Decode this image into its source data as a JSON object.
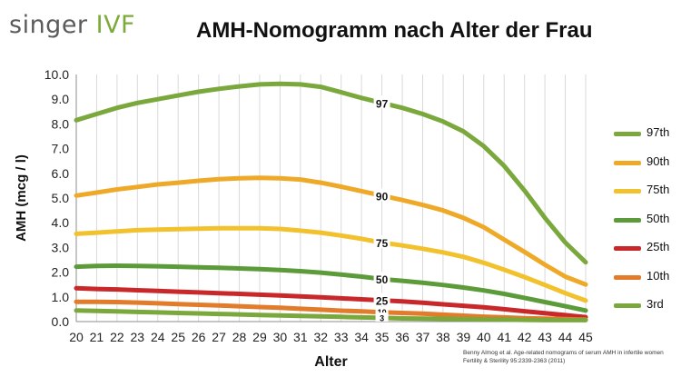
{
  "header": {
    "logo_part1": "singer",
    "logo_part2": "IVF",
    "title": "AMH-Nomogramm nach Alter der Frau"
  },
  "reference": {
    "line1": "Benny Almog et al. Age-related nomograms of serum AMH in infertile women",
    "line2": "Fertility & Sterility 95:2339-2363 (2011)"
  },
  "colors": {
    "green": "#7aa83c",
    "darkgreen": "#5c9b3a",
    "orange": "#efa928",
    "yellow": "#f2c12e",
    "red": "#c9282a",
    "darkorange": "#e27b2a",
    "logo_gray": "#5b5b5b",
    "logo_green": "#7cab3b"
  },
  "chart_data": {
    "type": "line",
    "xlabel": "Alter",
    "ylabel": "AMH (mcg / l)",
    "x": [
      20,
      21,
      22,
      23,
      24,
      25,
      26,
      27,
      28,
      29,
      30,
      31,
      32,
      33,
      34,
      35,
      36,
      37,
      38,
      39,
      40,
      41,
      42,
      43,
      44,
      45
    ],
    "ylim": [
      0,
      10
    ],
    "yticks": [
      "0.0",
      "1.0",
      "2.0",
      "3.0",
      "4.0",
      "5.0",
      "6.0",
      "7.0",
      "8.0",
      "9.0",
      "10.0"
    ],
    "xticks": [
      "20",
      "21",
      "22",
      "23",
      "24",
      "25",
      "26",
      "27",
      "28",
      "29",
      "30",
      "31",
      "32",
      "33",
      "34",
      "35",
      "36",
      "37",
      "38",
      "39",
      "40",
      "41",
      "42",
      "43",
      "44",
      "45"
    ],
    "grid": "vertical",
    "legend_position": "right",
    "series": [
      {
        "name": "97th",
        "label": "97",
        "color": "#7aa83c",
        "values": [
          8.15,
          8.4,
          8.65,
          8.85,
          9.0,
          9.15,
          9.3,
          9.42,
          9.52,
          9.6,
          9.62,
          9.6,
          9.5,
          9.28,
          9.05,
          8.85,
          8.65,
          8.4,
          8.1,
          7.7,
          7.1,
          6.3,
          5.3,
          4.2,
          3.2,
          2.4
        ]
      },
      {
        "name": "90th",
        "label": "90",
        "color": "#efa928",
        "values": [
          5.1,
          5.22,
          5.35,
          5.45,
          5.55,
          5.62,
          5.7,
          5.76,
          5.8,
          5.82,
          5.8,
          5.75,
          5.62,
          5.46,
          5.28,
          5.1,
          4.92,
          4.72,
          4.5,
          4.2,
          3.82,
          3.32,
          2.82,
          2.3,
          1.82,
          1.5
        ]
      },
      {
        "name": "75th",
        "label": "75",
        "color": "#f2c12e",
        "values": [
          3.55,
          3.6,
          3.65,
          3.7,
          3.72,
          3.74,
          3.76,
          3.78,
          3.78,
          3.78,
          3.75,
          3.68,
          3.6,
          3.48,
          3.35,
          3.2,
          3.08,
          2.95,
          2.8,
          2.62,
          2.38,
          2.1,
          1.8,
          1.48,
          1.15,
          0.85
        ]
      },
      {
        "name": "50th",
        "label": "50",
        "color": "#5c9b3a",
        "values": [
          2.22,
          2.25,
          2.26,
          2.25,
          2.24,
          2.22,
          2.2,
          2.18,
          2.15,
          2.12,
          2.09,
          2.04,
          1.98,
          1.9,
          1.82,
          1.72,
          1.65,
          1.57,
          1.48,
          1.38,
          1.26,
          1.12,
          0.96,
          0.79,
          0.62,
          0.45
        ]
      },
      {
        "name": "25th",
        "label": "25",
        "color": "#c9282a",
        "values": [
          1.35,
          1.32,
          1.3,
          1.27,
          1.24,
          1.21,
          1.18,
          1.15,
          1.12,
          1.09,
          1.06,
          1.02,
          0.98,
          0.94,
          0.9,
          0.86,
          0.82,
          0.76,
          0.7,
          0.64,
          0.58,
          0.5,
          0.42,
          0.34,
          0.26,
          0.18
        ]
      },
      {
        "name": "10th",
        "label": "10",
        "color": "#e27b2a",
        "values": [
          0.8,
          0.8,
          0.79,
          0.77,
          0.74,
          0.71,
          0.68,
          0.65,
          0.62,
          0.59,
          0.56,
          0.52,
          0.48,
          0.44,
          0.41,
          0.38,
          0.35,
          0.32,
          0.28,
          0.24,
          0.2,
          0.17,
          0.14,
          0.12,
          0.1,
          0.08
        ]
      },
      {
        "name": "3rd",
        "label": "3",
        "color": "#7aa83c",
        "values": [
          0.45,
          0.43,
          0.41,
          0.39,
          0.37,
          0.35,
          0.33,
          0.31,
          0.29,
          0.27,
          0.25,
          0.23,
          0.21,
          0.19,
          0.17,
          0.15,
          0.13,
          0.12,
          0.11,
          0.1,
          0.09,
          0.08,
          0.07,
          0.06,
          0.06,
          0.06
        ]
      }
    ]
  }
}
